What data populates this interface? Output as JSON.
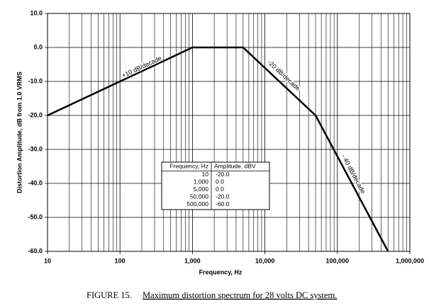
{
  "chart_data": {
    "type": "line",
    "x_scale": "log",
    "x": [
      10,
      1000,
      5000,
      50000,
      500000
    ],
    "values": [
      -20,
      0,
      0,
      -20,
      -60
    ],
    "color": "#000000",
    "xlabel": "Frequency, Hz",
    "ylabel": "Distortion Amplitude, dB from 1.0 VRMS",
    "xlim": [
      10,
      1000000
    ],
    "ylim": [
      -60,
      10
    ],
    "xticks": [
      10,
      100,
      {
        "value": 1000,
        "label": "1,000"
      },
      {
        "value": 10000,
        "label": "10,000"
      },
      {
        "value": 100000,
        "label": "100,000"
      },
      {
        "value": 1000000,
        "label": "1,000,000"
      }
    ],
    "x_minor_ticks": [
      20,
      30,
      40,
      50,
      60,
      70,
      80,
      90,
      200,
      300,
      400,
      500,
      600,
      700,
      800,
      900,
      2000,
      3000,
      4000,
      5000,
      6000,
      7000,
      8000,
      9000,
      20000,
      30000,
      40000,
      50000,
      60000,
      70000,
      80000,
      90000,
      200000,
      300000,
      400000,
      500000,
      600000,
      700000,
      800000,
      900000
    ],
    "yticks": [
      {
        "value": -60,
        "label": "-60.0"
      },
      {
        "value": -50,
        "label": "-50.0"
      },
      {
        "value": -40,
        "label": "-40.0"
      },
      {
        "value": -30,
        "label": "-30.0"
      },
      {
        "value": -20,
        "label": "-20.0"
      },
      {
        "value": -10,
        "label": "-10.0"
      },
      {
        "value": 0,
        "label": "0.0"
      },
      {
        "value": 10,
        "label": "10.0"
      }
    ],
    "grid": true,
    "annotations": [
      "+10 dB/decade",
      "-20 dB/decade",
      "- 40 dB/decade"
    ],
    "table": {
      "columns": [
        "Frequency, Hz",
        "Amplitude, dBV"
      ],
      "rows": [
        [
          "10",
          "-20.0"
        ],
        [
          "1,000",
          "0.0"
        ],
        [
          "5,000",
          "0.0"
        ],
        [
          "50,000",
          "-20.0"
        ],
        [
          "500,000",
          "-60.0"
        ]
      ]
    }
  },
  "caption": {
    "label": "FIGURE 15.",
    "text": "Maximum distortion spectrum for 28 volts DC system."
  }
}
